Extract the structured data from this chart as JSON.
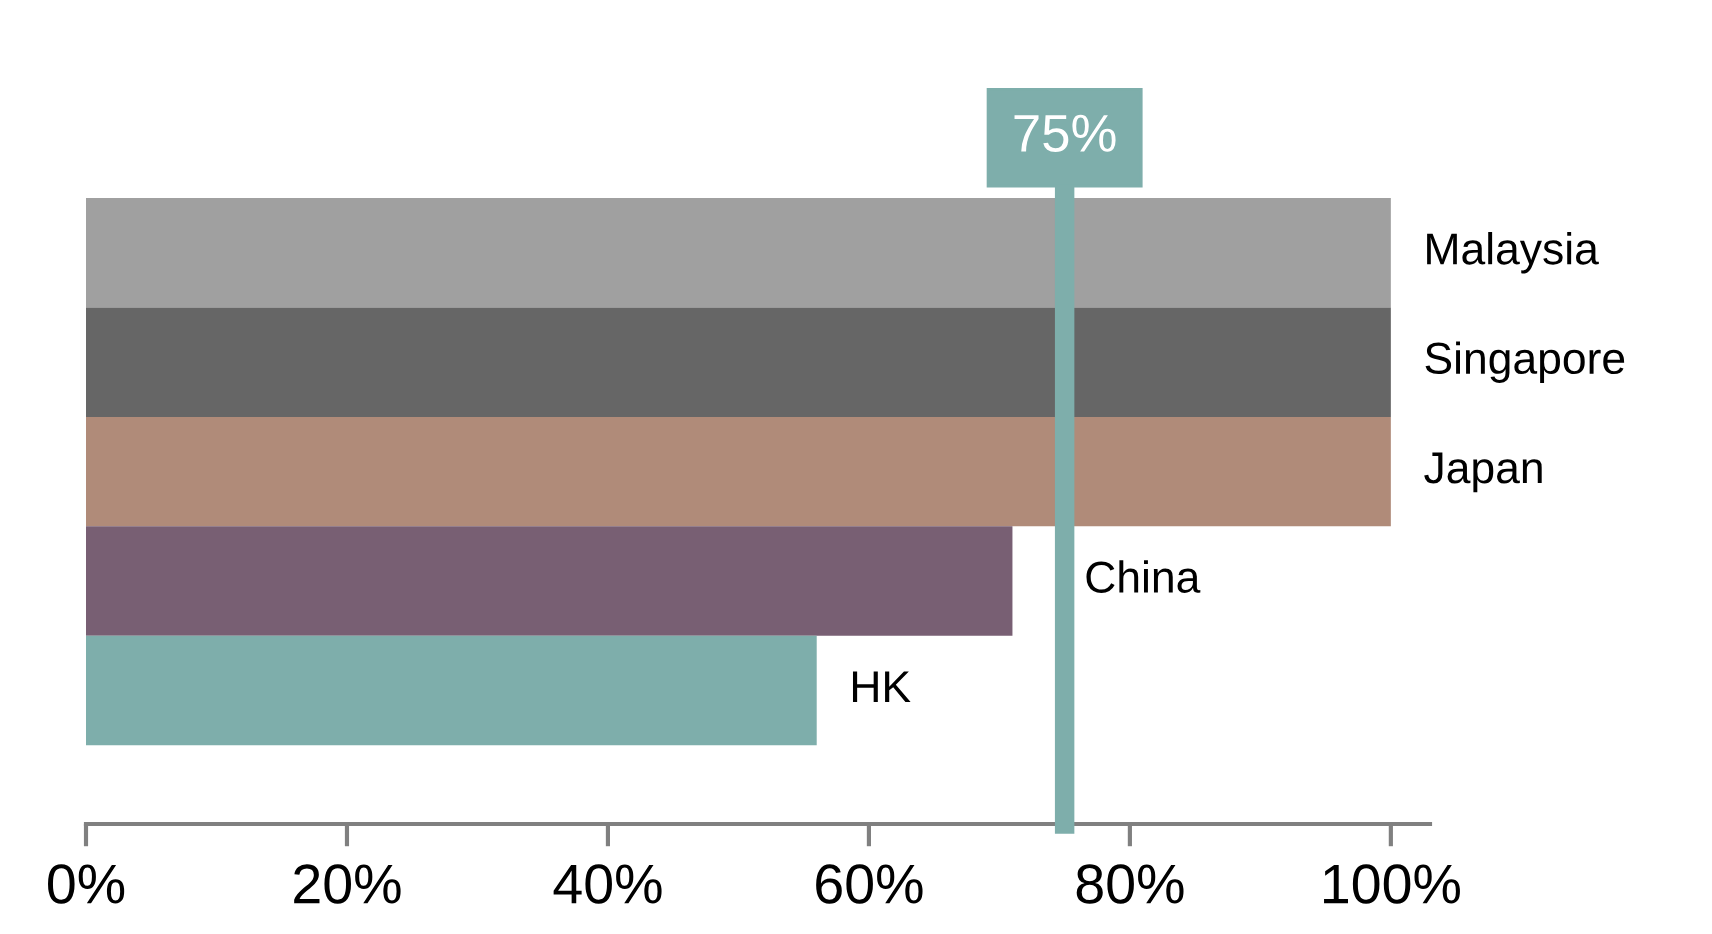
{
  "chart_data": {
    "type": "bar",
    "orientation": "horizontal",
    "categories": [
      "Malaysia",
      "Singapore",
      "Japan",
      "China",
      "HK"
    ],
    "values": [
      100,
      100,
      100,
      71,
      56
    ],
    "colors": [
      "#a0a0a0",
      "#666666",
      "#b08b79",
      "#785f73",
      "#7eaeab"
    ],
    "xlim": [
      0,
      103
    ],
    "xticks": [
      {
        "value": 0,
        "label": "0%"
      },
      {
        "value": 20,
        "label": "20%"
      },
      {
        "value": 40,
        "label": "40%"
      },
      {
        "value": 60,
        "label": "60%"
      },
      {
        "value": 80,
        "label": "80%"
      },
      {
        "value": 100,
        "label": "100%"
      }
    ],
    "ref_lines": [
      {
        "axis": "x",
        "value": 75,
        "label": "75%",
        "color": "#7eaeab"
      }
    ],
    "grid": false,
    "legend": false
  }
}
